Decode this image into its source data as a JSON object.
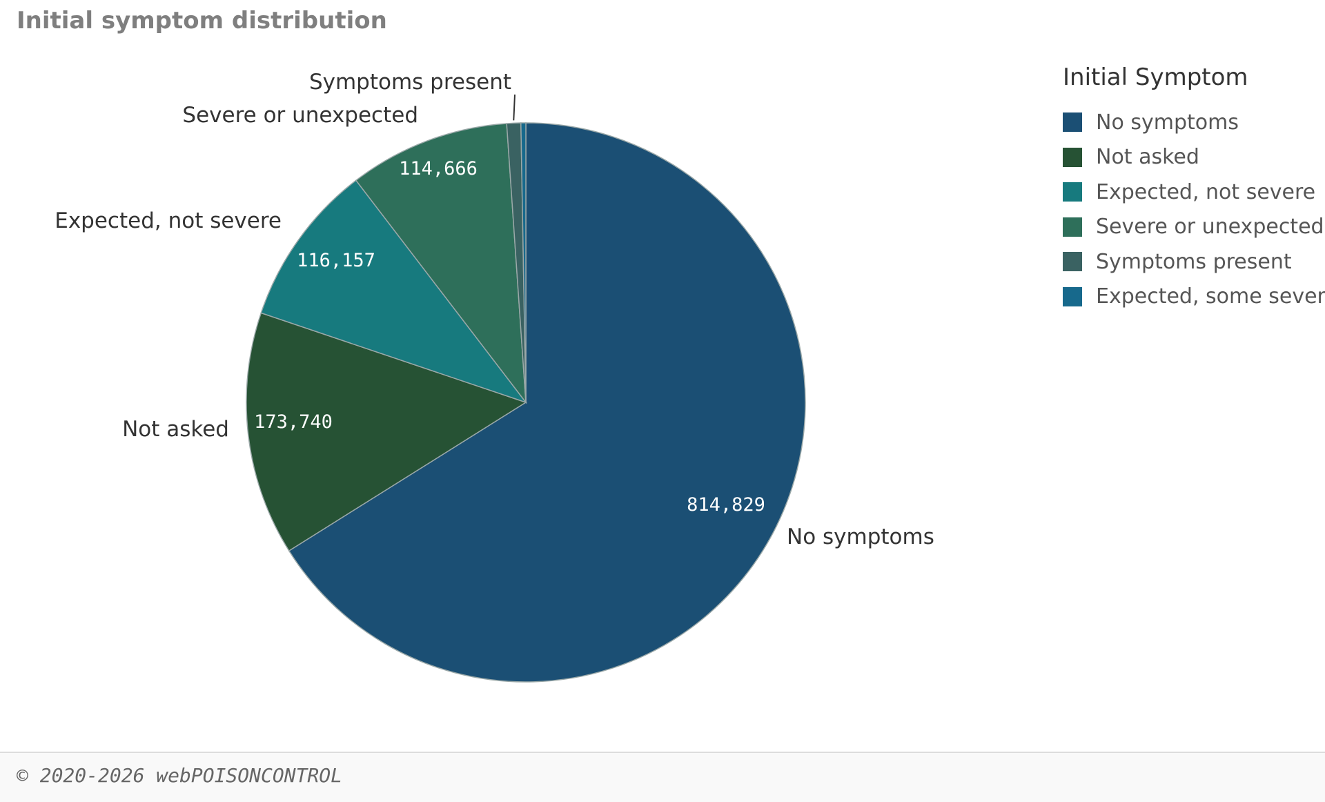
{
  "chart_data": {
    "type": "pie",
    "title": "Initial symptom distribution",
    "legend_title": "Initial Symptom",
    "legend_position": "right",
    "slices": [
      {
        "label": "No symptoms",
        "value": 814829,
        "value_label": "814,829",
        "color": "#1b4f74"
      },
      {
        "label": "Not asked",
        "value": 173740,
        "value_label": "173,740",
        "color": "#265234"
      },
      {
        "label": "Expected, not severe",
        "value": 116157,
        "value_label": "116,157",
        "color": "#177a7e"
      },
      {
        "label": "Severe or unexpected",
        "value": 114666,
        "value_label": "114,666",
        "color": "#2e6f5a"
      },
      {
        "label": "Symptoms present",
        "value": 10000,
        "value_label": "",
        "color": "#3a6262"
      },
      {
        "label": "Expected, some severe",
        "value": 3500,
        "value_label": "",
        "color": "#17698c"
      }
    ],
    "legend": [
      {
        "label": "No symptoms",
        "color": "#1b4f74"
      },
      {
        "label": "Not asked",
        "color": "#265234"
      },
      {
        "label": "Expected, not severe",
        "color": "#177a7e"
      },
      {
        "label": "Severe or unexpected",
        "color": "#2e6f5a"
      },
      {
        "label": "Symptoms present",
        "color": "#3a6262"
      },
      {
        "label": "Expected, some severe",
        "color": "#17698c"
      }
    ]
  },
  "footer": {
    "copyright": "© 2020-2026 webPOISONCONTROL"
  }
}
